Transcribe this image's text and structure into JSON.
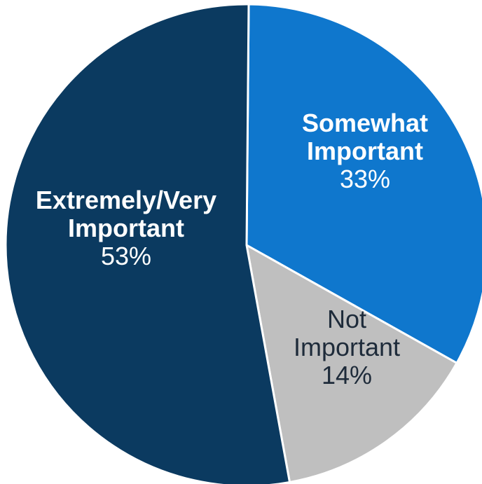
{
  "chart_data": {
    "type": "pie",
    "title": "",
    "slices": [
      {
        "label_lines": [
          "Somewhat",
          "Important"
        ],
        "value": 33,
        "value_label": "33%",
        "color": "#0f77cd",
        "label_color": "#ffffff",
        "bold": true
      },
      {
        "label_lines": [
          "Not",
          "Important"
        ],
        "value": 14,
        "value_label": "14%",
        "color": "#bfbfbf",
        "label_color": "#1e2b3a",
        "bold": false
      },
      {
        "label_lines": [
          "Extremely/Very",
          "Important"
        ],
        "value": 53,
        "value_label": "53%",
        "color": "#0b3a60",
        "label_color": "#ffffff",
        "bold": true
      }
    ]
  }
}
